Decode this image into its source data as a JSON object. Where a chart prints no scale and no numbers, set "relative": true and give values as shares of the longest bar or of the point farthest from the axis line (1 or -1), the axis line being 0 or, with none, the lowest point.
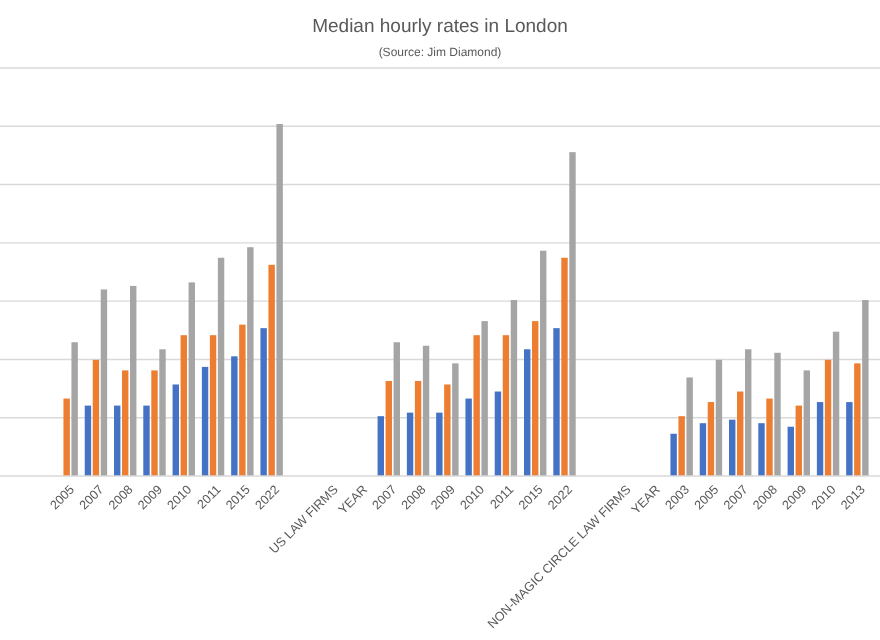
{
  "chart_data": {
    "type": "bar",
    "title": "Median hourly rates in London",
    "subtitle": "(Source: Jim Diamond)",
    "relative": true,
    "grid": "y",
    "categories": [
      "2005",
      "2007",
      "2008",
      "2009",
      "2010",
      "2011",
      "2015",
      "2022",
      null,
      "US LAW FIRMS",
      "YEAR",
      "2007",
      "2008",
      "2009",
      "2010",
      "2011",
      "2015",
      "2022",
      null,
      "NON-MAGIC CIRCLE LAW FIRMS",
      "YEAR",
      "2003",
      "2005",
      "2007",
      "2008",
      "2009",
      "2010",
      "2013"
    ],
    "series": [
      {
        "color": "#4472c4",
        "values": [
          null,
          0.2,
          0.2,
          0.2,
          0.26,
          0.31,
          0.34,
          0.42,
          null,
          null,
          null,
          0.17,
          0.18,
          0.18,
          0.22,
          0.24,
          0.36,
          0.42,
          null,
          null,
          null,
          0.12,
          0.15,
          0.16,
          0.15,
          0.14,
          0.21,
          0.21
        ]
      },
      {
        "color": "#ed7d31",
        "values": [
          0.22,
          0.33,
          0.3,
          0.3,
          0.4,
          0.4,
          0.43,
          0.6,
          null,
          null,
          null,
          0.27,
          0.27,
          0.26,
          0.4,
          0.4,
          0.44,
          0.62,
          null,
          null,
          null,
          0.17,
          0.21,
          0.24,
          0.22,
          0.2,
          0.33,
          0.32
        ]
      },
      {
        "color": "#a5a5a5",
        "values": [
          0.38,
          0.53,
          0.54,
          0.36,
          0.55,
          0.62,
          0.65,
          1,
          null,
          null,
          null,
          0.38,
          0.37,
          0.32,
          0.44,
          0.5,
          0.64,
          0.92,
          null,
          null,
          null,
          0.28,
          0.33,
          0.36,
          0.35,
          0.3,
          0.41,
          0.5
        ]
      }
    ]
  }
}
